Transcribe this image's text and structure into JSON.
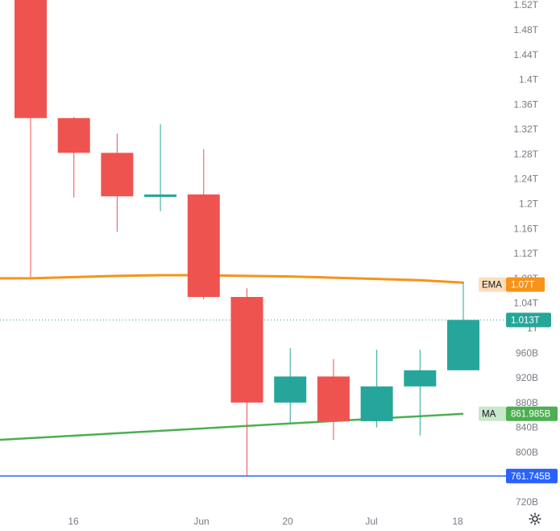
{
  "chart_data": {
    "type": "candlestick",
    "x_tick_labels": [
      "16",
      "Jun",
      "20",
      "Jul",
      "18"
    ],
    "y_tick_labels": [
      "1.52T",
      "1.48T",
      "1.44T",
      "1.4T",
      "1.36T",
      "1.32T",
      "1.28T",
      "1.24T",
      "1.2T",
      "1.16T",
      "1.12T",
      "1.08T",
      "1.04T",
      "1T",
      "960B",
      "920B",
      "880B",
      "840B",
      "800B",
      "720B"
    ],
    "y_tick_values": [
      1520,
      1480,
      1440,
      1400,
      1360,
      1320,
      1280,
      1240,
      1200,
      1160,
      1120,
      1080,
      1040,
      1000,
      960,
      920,
      880,
      840,
      800,
      720
    ],
    "ylim": [
      700,
      1525
    ],
    "unit_note": "values in billions",
    "candles": [
      {
        "open": 1530,
        "high": 1530,
        "low": 1082,
        "close": 1338
      },
      {
        "open": 1338,
        "high": 1340,
        "low": 1210,
        "close": 1282
      },
      {
        "open": 1282,
        "high": 1313,
        "low": 1155,
        "close": 1212
      },
      {
        "open": 1212,
        "high": 1328,
        "low": 1188,
        "close": 1215
      },
      {
        "open": 1215,
        "high": 1288,
        "low": 1046,
        "close": 1050
      },
      {
        "open": 1050,
        "high": 1064,
        "low": 761.745,
        "close": 880
      },
      {
        "open": 880,
        "high": 968,
        "low": 848,
        "close": 922
      },
      {
        "open": 922,
        "high": 950,
        "low": 820,
        "close": 850
      },
      {
        "open": 850,
        "high": 965,
        "low": 840,
        "close": 906
      },
      {
        "open": 906,
        "high": 965,
        "low": 827,
        "close": 932
      },
      {
        "open": 932,
        "high": 1075,
        "low": 932,
        "close": 1013
      }
    ],
    "ema_series": {
      "name": "EMA",
      "color": "#f7931a",
      "values": [
        1080,
        1082,
        1084,
        1085,
        1085,
        1084,
        1083,
        1081,
        1079,
        1077,
        1073
      ]
    },
    "ma_series": {
      "name": "MA",
      "color": "#4caf50",
      "start_value": 820,
      "end_value": 861.985
    },
    "horizontal_line": {
      "value": 761.745,
      "label": "761.745B",
      "color": "#2962ff"
    },
    "last_price": {
      "value": 1013,
      "label": "1.013T",
      "color": "#26a69a"
    },
    "ema_tag": {
      "name": "EMA",
      "value_label": "1.07T"
    },
    "ma_tag": {
      "name": "MA",
      "value_label": "861.985B"
    },
    "up_color": "#26a69a",
    "down_color": "#ef5350",
    "grid": false
  }
}
